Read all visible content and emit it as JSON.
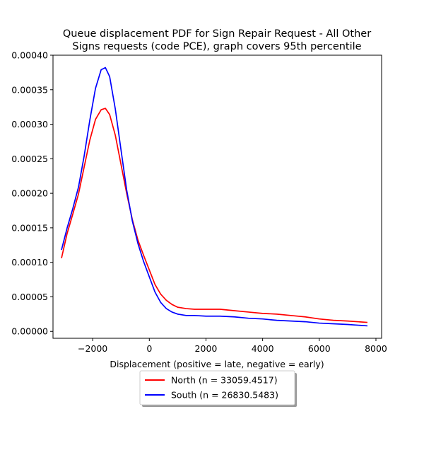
{
  "chart_data": {
    "type": "line",
    "title_lines": [
      "Queue displacement PDF for Sign Repair Request - All Other",
      "Signs  requests (code PCE), graph covers 95th percentile"
    ],
    "xlabel": "Displacement (positive = late, negative = early)",
    "ylabel": "",
    "xlim": [
      -3400,
      8200
    ],
    "ylim": [
      -1e-05,
      0.0004
    ],
    "x_ticks": [
      -2000,
      0,
      2000,
      4000,
      6000,
      8000
    ],
    "x_tick_labels": [
      "−2000",
      "0",
      "2000",
      "4000",
      "6000",
      "8000"
    ],
    "y_ticks": [
      0,
      5e-05,
      0.0001,
      0.00015,
      0.0002,
      0.00025,
      0.0003,
      0.00035,
      0.0004
    ],
    "y_tick_labels": [
      "0.00000",
      "0.00005",
      "0.00010",
      "0.00015",
      "0.00020",
      "0.00025",
      "0.00030",
      "0.00035",
      "0.00040"
    ],
    "grid": false,
    "legend_position": "below plot, centered",
    "series": [
      {
        "name": "North (n = 33059.4517)",
        "color": "#ff0000",
        "points": [
          [
            -3100,
            0.000106
          ],
          [
            -2900,
            0.000142
          ],
          [
            -2700,
            0.00017
          ],
          [
            -2500,
            0.000199
          ],
          [
            -2300,
            0.000238
          ],
          [
            -2100,
            0.000277
          ],
          [
            -1900,
            0.000307
          ],
          [
            -1700,
            0.000321
          ],
          [
            -1550,
            0.000323
          ],
          [
            -1400,
            0.000314
          ],
          [
            -1200,
            0.000284
          ],
          [
            -1000,
            0.000242
          ],
          [
            -800,
            0.0002
          ],
          [
            -600,
            0.000162
          ],
          [
            -400,
            0.000132
          ],
          [
            -200,
            0.00011
          ],
          [
            0,
            8.9e-05
          ],
          [
            200,
            6.8e-05
          ],
          [
            400,
            5.4e-05
          ],
          [
            600,
            4.5e-05
          ],
          [
            800,
            3.9e-05
          ],
          [
            1000,
            3.5e-05
          ],
          [
            1300,
            3.3e-05
          ],
          [
            1600,
            3.2e-05
          ],
          [
            2000,
            3.2e-05
          ],
          [
            2500,
            3.2e-05
          ],
          [
            3000,
            3e-05
          ],
          [
            3500,
            2.8e-05
          ],
          [
            4000,
            2.6e-05
          ],
          [
            4500,
            2.5e-05
          ],
          [
            5000,
            2.3e-05
          ],
          [
            5500,
            2.1e-05
          ],
          [
            6000,
            1.8e-05
          ],
          [
            6500,
            1.6e-05
          ],
          [
            7000,
            1.5e-05
          ],
          [
            7700,
            1.3e-05
          ]
        ]
      },
      {
        "name": "South (n = 26830.5483)",
        "color": "#0000ff",
        "points": [
          [
            -3100,
            0.000118
          ],
          [
            -2900,
            0.00015
          ],
          [
            -2700,
            0.000178
          ],
          [
            -2500,
            0.000209
          ],
          [
            -2300,
            0.000254
          ],
          [
            -2100,
            0.000306
          ],
          [
            -1900,
            0.000352
          ],
          [
            -1700,
            0.000379
          ],
          [
            -1550,
            0.000382
          ],
          [
            -1400,
            0.000369
          ],
          [
            -1200,
            0.000322
          ],
          [
            -1000,
            0.000263
          ],
          [
            -800,
            0.000205
          ],
          [
            -600,
            0.00016
          ],
          [
            -400,
            0.000127
          ],
          [
            -200,
            0.000101
          ],
          [
            0,
            7.9e-05
          ],
          [
            200,
            5.7e-05
          ],
          [
            400,
            4.2e-05
          ],
          [
            600,
            3.3e-05
          ],
          [
            800,
            2.8e-05
          ],
          [
            1000,
            2.5e-05
          ],
          [
            1300,
            2.3e-05
          ],
          [
            1600,
            2.3e-05
          ],
          [
            2000,
            2.2e-05
          ],
          [
            2500,
            2.2e-05
          ],
          [
            3000,
            2.1e-05
          ],
          [
            3500,
            1.9e-05
          ],
          [
            4000,
            1.8e-05
          ],
          [
            4500,
            1.6e-05
          ],
          [
            5000,
            1.5e-05
          ],
          [
            5500,
            1.4e-05
          ],
          [
            6000,
            1.2e-05
          ],
          [
            6500,
            1.1e-05
          ],
          [
            7000,
            1e-05
          ],
          [
            7700,
            8e-06
          ]
        ]
      }
    ]
  }
}
